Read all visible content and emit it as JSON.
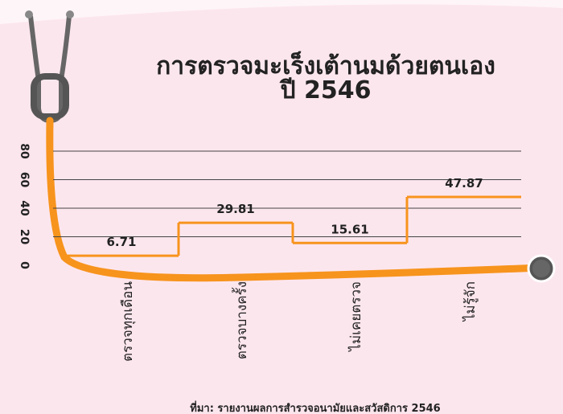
{
  "chart_data": {
    "type": "step",
    "title": "การตรวจมะเร็งเต้านมด้วยตนเอง",
    "subtitle": "ปี 2546",
    "categories": [
      "ตรวจทุกเดือน",
      "ตรวจบางครั้ง",
      "ไม่เคยตรวจ",
      "ไม่รู้จัก"
    ],
    "values": [
      6.71,
      29.81,
      15.61,
      47.87
    ],
    "color": "#f7941d",
    "ylim": [
      0,
      80
    ],
    "yticks": [
      0,
      20,
      40,
      60,
      80
    ],
    "grid": true,
    "source": "ที่มา: รายงานผลการสำรวจอนามัยและสวัสดิการ 2546"
  }
}
